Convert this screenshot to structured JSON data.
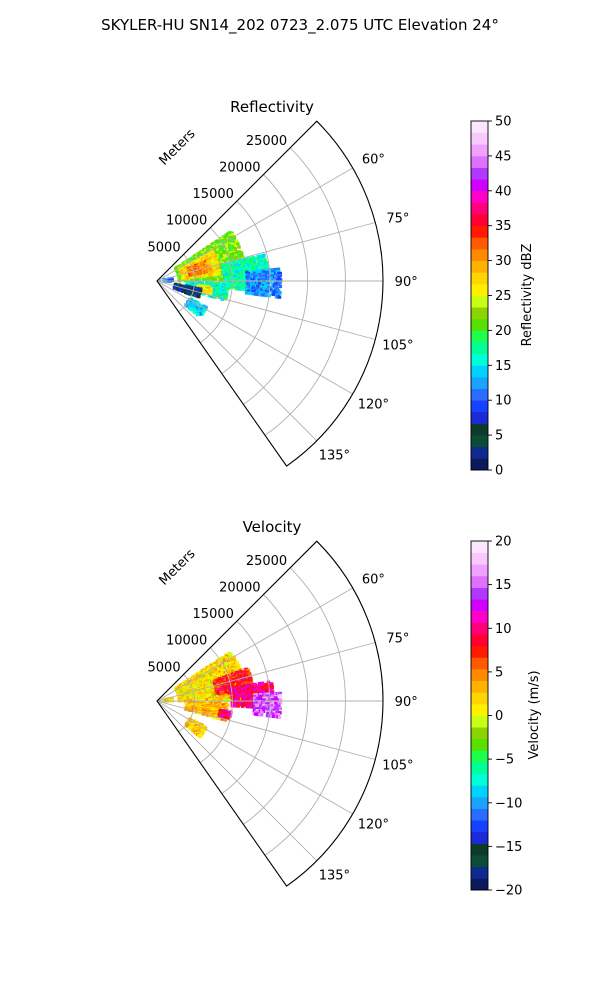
{
  "figure_title": "SKYLER-HU  SN14_202  0723_2.075 UTC Elevation 24°",
  "colors": {
    "grid": "#b0b0b0",
    "frame": "#000000",
    "background": "#ffffff"
  },
  "chart_data": [
    {
      "type": "polar-sector",
      "title": "Reflectivity",
      "radial_label": "Meters",
      "r_ticks": [
        "5000",
        "10000",
        "15000",
        "20000",
        "25000"
      ],
      "r_tick_values": [
        5000,
        10000,
        15000,
        20000,
        25000
      ],
      "rlim": [
        0,
        30000
      ],
      "theta_ticks": [
        "60°",
        "75°",
        "90°",
        "105°",
        "120°",
        "135°"
      ],
      "theta_tick_values": [
        60,
        75,
        90,
        105,
        120,
        135
      ],
      "theta_range_deg": [
        45,
        145
      ],
      "grid": true,
      "colorbar": {
        "label": "Reflectivity dBZ",
        "ticks": [
          "0",
          "5",
          "10",
          "15",
          "20",
          "25",
          "30",
          "35",
          "40",
          "45",
          "50"
        ],
        "range": [
          0,
          50
        ],
        "colors": [
          "#0b1a5e",
          "#0e2a8f",
          "#0b4b3a",
          "#0d3b2a",
          "#1b2ad6",
          "#1840ff",
          "#2a6cff",
          "#1aa4ff",
          "#00d2ff",
          "#00ffd8",
          "#00ff9a",
          "#1cff4e",
          "#58e000",
          "#8cd400",
          "#c8ff14",
          "#fff000",
          "#ffd400",
          "#ffb300",
          "#ff8a00",
          "#ff5a00",
          "#ff1a00",
          "#ff0030",
          "#ff0078",
          "#ff00c8",
          "#d000ff",
          "#b038ff",
          "#e070ff",
          "#f0a0ff",
          "#f8c8ff",
          "#fce6ff"
        ]
      },
      "echo_regions": [
        {
          "az": [
            56,
            90
          ],
          "r": [
            3000,
            12000
          ],
          "value": 22
        },
        {
          "az": [
            62,
            84
          ],
          "r": [
            3500,
            8500
          ],
          "value": 27
        },
        {
          "az": [
            68,
            80
          ],
          "r": [
            4500,
            7500
          ],
          "value": 31
        },
        {
          "az": [
            76,
            96
          ],
          "r": [
            9000,
            15000
          ],
          "value": 17
        },
        {
          "az": [
            84,
            98
          ],
          "r": [
            12000,
            16500
          ],
          "value": 12
        },
        {
          "az": [
            92,
            106
          ],
          "r": [
            4000,
            9500
          ],
          "value": 16
        },
        {
          "az": [
            96,
            104
          ],
          "r": [
            5500,
            7500
          ],
          "value": 26
        },
        {
          "az": [
            100,
            112
          ],
          "r": [
            2500,
            6000
          ],
          "value": 6
        },
        {
          "az": [
            118,
            130
          ],
          "r": [
            5000,
            7500
          ],
          "value": 14
        },
        {
          "az": [
            80,
            90
          ],
          "r": [
            1000,
            2200
          ],
          "value": 11
        }
      ]
    },
    {
      "type": "polar-sector",
      "title": "Velocity",
      "radial_label": "Meters",
      "r_ticks": [
        "5000",
        "10000",
        "15000",
        "20000",
        "25000"
      ],
      "r_tick_values": [
        5000,
        10000,
        15000,
        20000,
        25000
      ],
      "rlim": [
        0,
        30000
      ],
      "theta_ticks": [
        "60°",
        "75°",
        "90°",
        "105°",
        "120°",
        "135°"
      ],
      "theta_tick_values": [
        60,
        75,
        90,
        105,
        120,
        135
      ],
      "theta_range_deg": [
        45,
        145
      ],
      "grid": true,
      "colorbar": {
        "label": "Velocity (m/s)",
        "ticks": [
          "−20",
          "−15",
          "−10",
          "−5",
          "0",
          "5",
          "10",
          "15",
          "20"
        ],
        "range": [
          -20,
          20
        ],
        "colors": [
          "#0b1a5e",
          "#0e2a8f",
          "#0b4b3a",
          "#0d3b2a",
          "#1b2ad6",
          "#1840ff",
          "#2a6cff",
          "#1aa4ff",
          "#00d2ff",
          "#00ffd8",
          "#00ff9a",
          "#1cff4e",
          "#58e000",
          "#8cd400",
          "#c8ff14",
          "#fff000",
          "#ffd400",
          "#ffb300",
          "#ff8a00",
          "#ff5a00",
          "#ff1a00",
          "#ff0030",
          "#ff0078",
          "#ff00c8",
          "#d000ff",
          "#b038ff",
          "#e070ff",
          "#f0a0ff",
          "#f8c8ff",
          "#fce6ff"
        ]
      },
      "echo_regions": [
        {
          "az": [
            56,
            90
          ],
          "r": [
            3000,
            12000
          ],
          "value": 2
        },
        {
          "az": [
            62,
            84
          ],
          "r": [
            3500,
            8500
          ],
          "value": 1
        },
        {
          "az": [
            70,
            84
          ],
          "r": [
            8000,
            13000
          ],
          "value": 8
        },
        {
          "az": [
            80,
            94
          ],
          "r": [
            10000,
            15500
          ],
          "value": 10
        },
        {
          "az": [
            86,
            98
          ],
          "r": [
            13000,
            16500
          ],
          "value": 15
        },
        {
          "az": [
            92,
            106
          ],
          "r": [
            4000,
            9500
          ],
          "value": 3
        },
        {
          "az": [
            98,
            104
          ],
          "r": [
            8500,
            10000
          ],
          "value": 10
        },
        {
          "az": [
            118,
            130
          ],
          "r": [
            5000,
            7500
          ],
          "value": 2
        },
        {
          "az": [
            80,
            90
          ],
          "r": [
            1000,
            2200
          ],
          "value": 1
        }
      ]
    }
  ]
}
